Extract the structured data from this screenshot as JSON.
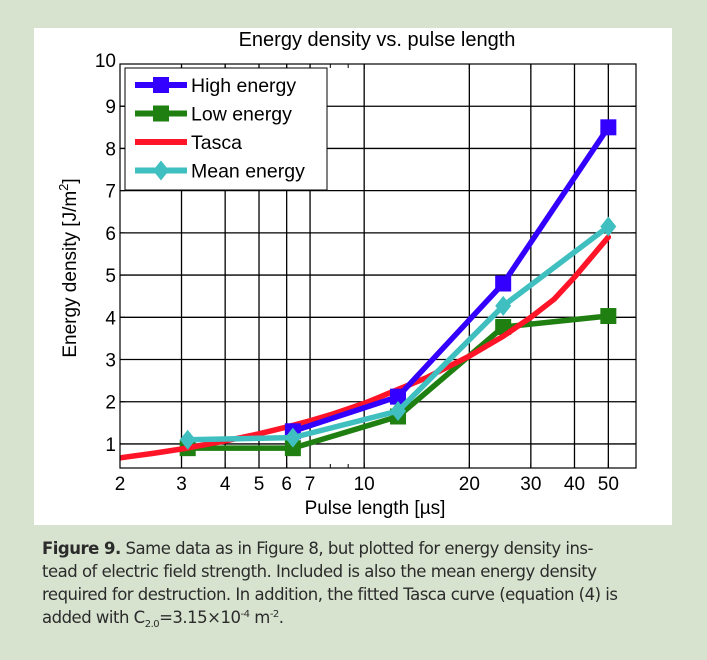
{
  "chart_data": {
    "type": "line",
    "title": "Energy density vs. pulse length",
    "xlabel": "Pulse length [µs]",
    "ylabel": "Energy density [J/m²]",
    "xscale": "log",
    "xlim": [
      2,
      60
    ],
    "ylim": [
      0.43,
      10
    ],
    "grid": true,
    "legend_position": "top-left",
    "x_ticks": [
      2,
      3,
      4,
      5,
      6,
      7,
      10,
      20,
      30,
      40,
      50
    ],
    "x_tick_labels": [
      "2",
      "3",
      "4",
      "5",
      "6",
      "7",
      "10",
      "20",
      "30",
      "40",
      "50"
    ],
    "y_ticks": [
      1,
      2,
      3,
      4,
      5,
      6,
      7,
      8,
      9,
      10
    ],
    "y_tick_labels": [
      "1",
      "2",
      "3",
      "4",
      "5",
      "6",
      "7",
      "8",
      "9",
      "10"
    ],
    "series": [
      {
        "name": "High energy",
        "color": "#3300ff",
        "marker": "square",
        "x": [
          6.25,
          12.5,
          25,
          50
        ],
        "y": [
          1.3,
          2.12,
          4.8,
          8.5
        ]
      },
      {
        "name": "Low energy",
        "color": "#1f7f10",
        "marker": "square",
        "x": [
          3.125,
          6.25,
          12.5,
          25,
          50
        ],
        "y": [
          0.9,
          0.9,
          1.65,
          3.77,
          4.03
        ]
      },
      {
        "name": "Tasca",
        "color": "#ff1428",
        "marker": "none",
        "x": [
          2,
          2.5,
          3,
          4,
          5,
          6,
          7,
          8,
          10,
          12.5,
          15,
          20,
          25,
          30,
          35,
          40,
          45,
          50
        ],
        "y": [
          0.67,
          0.78,
          0.88,
          1.07,
          1.24,
          1.4,
          1.55,
          1.69,
          1.96,
          2.29,
          2.56,
          3.08,
          3.55,
          4.0,
          4.43,
          4.95,
          5.45,
          5.9
        ]
      },
      {
        "name": "Mean energy",
        "color": "#3fbfbf",
        "marker": "diamond",
        "x": [
          3.125,
          6.25,
          12.5,
          25,
          50
        ],
        "y": [
          1.1,
          1.15,
          1.78,
          4.27,
          6.15
        ]
      }
    ]
  },
  "caption": {
    "label": "Figure 9.",
    "line1": " Same data as in Figure 8, but plotted for energy density ins-",
    "line2": "tead of electric field strength. Included is also the mean energy density",
    "line3": "required for destruction. In addition, the fitted Tasca curve (equation (4) is",
    "line4_pre": "added with C",
    "line4_sub": "2.0",
    "line4_mid": "=3.15×10",
    "line4_sup1": "-4",
    "line4_unit": " m",
    "line4_sup2": "-2",
    "line4_end": "."
  }
}
